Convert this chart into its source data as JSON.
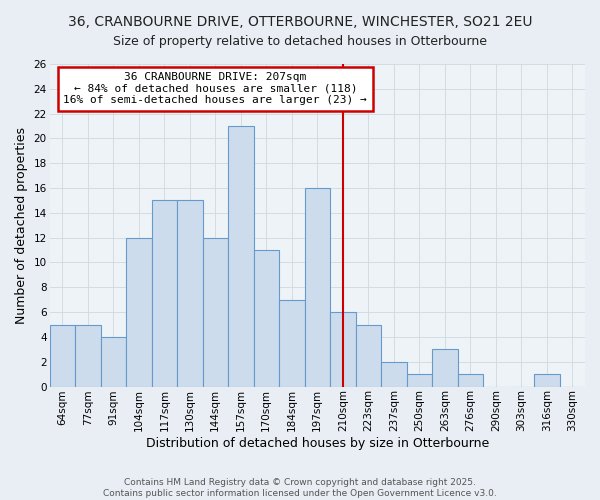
{
  "title": "36, CRANBOURNE DRIVE, OTTERBOURNE, WINCHESTER, SO21 2EU",
  "subtitle": "Size of property relative to detached houses in Otterbourne",
  "xlabel": "Distribution of detached houses by size in Otterbourne",
  "ylabel": "Number of detached properties",
  "bin_labels": [
    "64sqm",
    "77sqm",
    "91sqm",
    "104sqm",
    "117sqm",
    "130sqm",
    "144sqm",
    "157sqm",
    "170sqm",
    "184sqm",
    "197sqm",
    "210sqm",
    "223sqm",
    "237sqm",
    "250sqm",
    "263sqm",
    "276sqm",
    "290sqm",
    "303sqm",
    "316sqm",
    "330sqm"
  ],
  "bar_values": [
    5,
    5,
    4,
    12,
    15,
    15,
    12,
    21,
    11,
    7,
    16,
    6,
    5,
    2,
    1,
    3,
    1,
    0,
    0,
    1,
    0
  ],
  "bar_color": "#ccdcec",
  "bar_edge_color": "#6699cc",
  "grid_color": "#d0d8e0",
  "vline_x": 11,
  "vline_color": "#cc0000",
  "annotation_title": "36 CRANBOURNE DRIVE: 207sqm",
  "annotation_line1": "← 84% of detached houses are smaller (118)",
  "annotation_line2": "16% of semi-detached houses are larger (23) →",
  "annotation_box_color": "#ffffff",
  "annotation_box_edge": "#cc0000",
  "footer_line1": "Contains HM Land Registry data © Crown copyright and database right 2025.",
  "footer_line2": "Contains public sector information licensed under the Open Government Licence v3.0.",
  "ylim": [
    0,
    26
  ],
  "yticks": [
    0,
    2,
    4,
    6,
    8,
    10,
    12,
    14,
    16,
    18,
    20,
    22,
    24,
    26
  ],
  "background_color": "#e8eef4",
  "plot_background_color": "#eef3f8",
  "title_fontsize": 10,
  "subtitle_fontsize": 9,
  "axis_label_fontsize": 9,
  "tick_fontsize": 7.5,
  "footer_fontsize": 6.5
}
